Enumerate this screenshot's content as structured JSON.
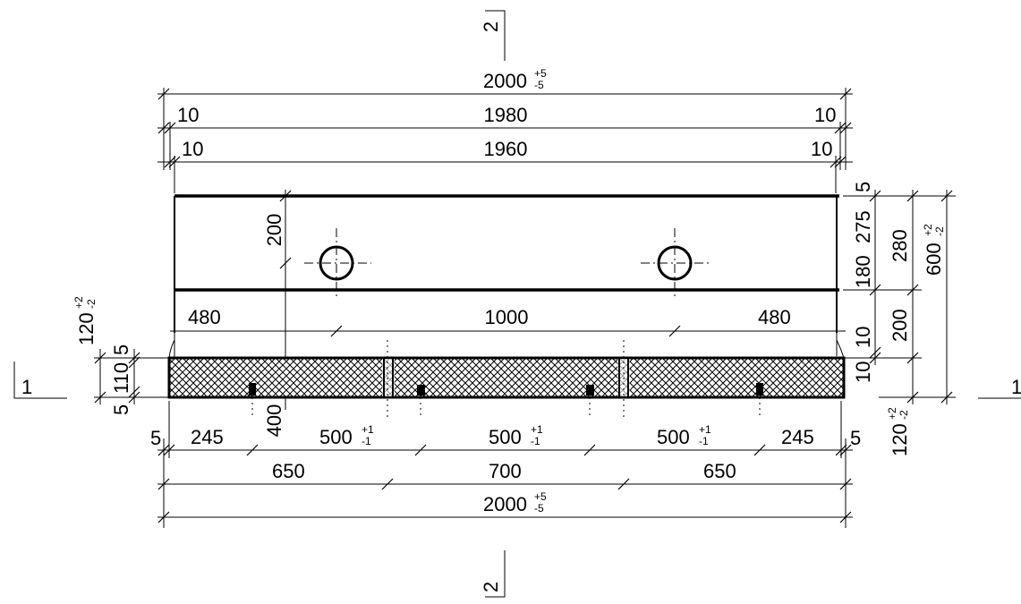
{
  "section_marks": {
    "top": "2",
    "bottom": "2",
    "left": "1",
    "right": "1"
  },
  "top_dims": {
    "overall": {
      "value": "2000",
      "tol_plus": "+5",
      "tol_minus": "-5"
    },
    "row2": {
      "left": "10",
      "mid": "1980",
      "right": "10"
    },
    "row3": {
      "left": "10",
      "mid": "1960",
      "right": "10"
    }
  },
  "hole_dims": {
    "left": "480",
    "mid": "1000",
    "right": "480",
    "vertical": "200"
  },
  "right_dims": {
    "top_gap": "5",
    "a": "275",
    "b": "180",
    "c": "280",
    "d": "200",
    "e": "10",
    "f": "10",
    "total": {
      "value": "600",
      "tol_plus": "+2",
      "tol_minus": "-2"
    },
    "bottom": {
      "value": "120",
      "tol_plus": "+2",
      "tol_minus": "-2"
    }
  },
  "left_dims": {
    "top": {
      "value": "120",
      "tol_plus": "+2",
      "tol_minus": "-2"
    },
    "a": "5",
    "b": "110",
    "c": "5"
  },
  "bottom_dims": {
    "row1": {
      "edge_left": "5",
      "a": "245",
      "b": {
        "value": "500",
        "tol_plus": "+1",
        "tol_minus": "-1"
      },
      "c": {
        "value": "500",
        "tol_plus": "+1",
        "tol_minus": "-1"
      },
      "d": {
        "value": "500",
        "tol_plus": "+1",
        "tol_minus": "-1"
      },
      "e": "245",
      "edge_right": "5"
    },
    "vertical": "400",
    "row2": {
      "a": "650",
      "b": "700",
      "c": "650"
    },
    "overall": {
      "value": "2000",
      "tol_plus": "+5",
      "tol_minus": "-5"
    }
  }
}
